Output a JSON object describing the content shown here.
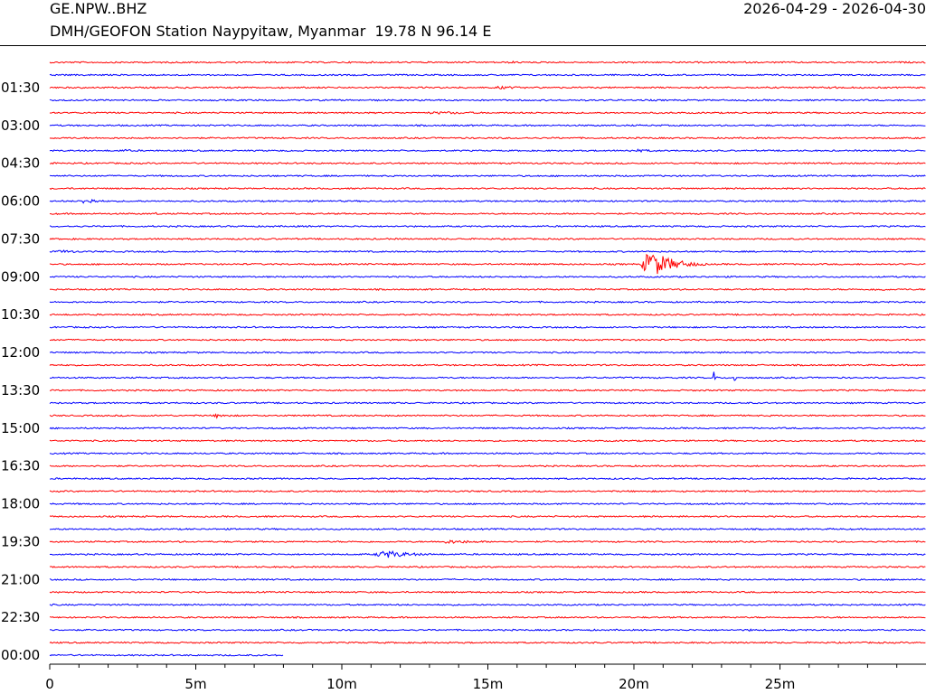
{
  "header": {
    "station_code": "GE.NPW..BHZ",
    "station_description": "DMH/GEOFON Station Naypyitaw, Myanmar  19.78 N 96.14 E",
    "date_range": "2026-04-29 - 2026-04-30"
  },
  "colors": {
    "trace_a": "#ff0000",
    "trace_b": "#0000ff",
    "axis": "#000000"
  },
  "chart_data": {
    "type": "line",
    "title": "",
    "xlabel": "",
    "ylabel": "",
    "x_unit": "minutes",
    "xlim": [
      0,
      30
    ],
    "row_minutes": 30,
    "row_count": 48,
    "row_colors": [
      "red",
      "blue"
    ],
    "x_ticks": [
      0,
      5,
      10,
      15,
      20,
      25
    ],
    "x_tick_labels": [
      "0",
      "5m",
      "10m",
      "15m",
      "20m",
      "25m"
    ],
    "x_minor_tick_step": 1,
    "y_tick_labels": [
      "01:30",
      "03:00",
      "04:30",
      "06:00",
      "07:30",
      "09:00",
      "10:30",
      "12:00",
      "13:30",
      "15:00",
      "16:30",
      "18:00",
      "19:30",
      "21:00",
      "22:30",
      "00:00"
    ],
    "y_tick_rows": [
      2,
      5,
      8,
      11,
      14,
      17,
      20,
      23,
      26,
      29,
      32,
      35,
      38,
      41,
      44,
      47
    ],
    "last_row_end_minute": 8,
    "events": [
      {
        "row": 0,
        "start_min": 15.5,
        "end_min": 17.5,
        "amplitude": 0.2
      },
      {
        "row": 2,
        "start_min": 15.0,
        "end_min": 18.0,
        "amplitude": 0.25
      },
      {
        "row": 2,
        "start_min": 26.5,
        "end_min": 28.5,
        "amplitude": 0.2
      },
      {
        "row": 4,
        "start_min": 12.0,
        "end_min": 21.0,
        "amplitude": 0.2
      },
      {
        "row": 7,
        "start_min": 2.3,
        "end_min": 3.7,
        "amplitude": 0.25
      },
      {
        "row": 7,
        "start_min": 19.5,
        "end_min": 23.0,
        "amplitude": 0.25
      },
      {
        "row": 11,
        "start_min": 1.0,
        "end_min": 2.5,
        "amplitude": 0.55
      },
      {
        "row": 12,
        "start_min": 3.5,
        "end_min": 4.5,
        "amplitude": 0.2
      },
      {
        "row": 15,
        "start_min": 0.0,
        "end_min": 3.0,
        "amplitude": 0.25
      },
      {
        "row": 16,
        "start_min": 20.2,
        "end_min": 22.5,
        "amplitude": 2.4
      },
      {
        "row": 18,
        "start_min": 28.0,
        "end_min": 30.0,
        "amplitude": 0.25
      },
      {
        "row": 25,
        "start_min": 22.7,
        "end_min": 22.9,
        "amplitude": 1.1
      },
      {
        "row": 25,
        "start_min": 23.4,
        "end_min": 23.6,
        "amplitude": 1.0
      },
      {
        "row": 28,
        "start_min": 5.5,
        "end_min": 7.0,
        "amplitude": 0.35
      },
      {
        "row": 38,
        "start_min": 13.0,
        "end_min": 17.5,
        "amplitude": 0.3
      },
      {
        "row": 39,
        "start_min": 11.0,
        "end_min": 14.0,
        "amplitude": 0.65
      },
      {
        "row": 45,
        "start_min": 23.5,
        "end_min": 26.0,
        "amplitude": 0.2
      }
    ]
  }
}
